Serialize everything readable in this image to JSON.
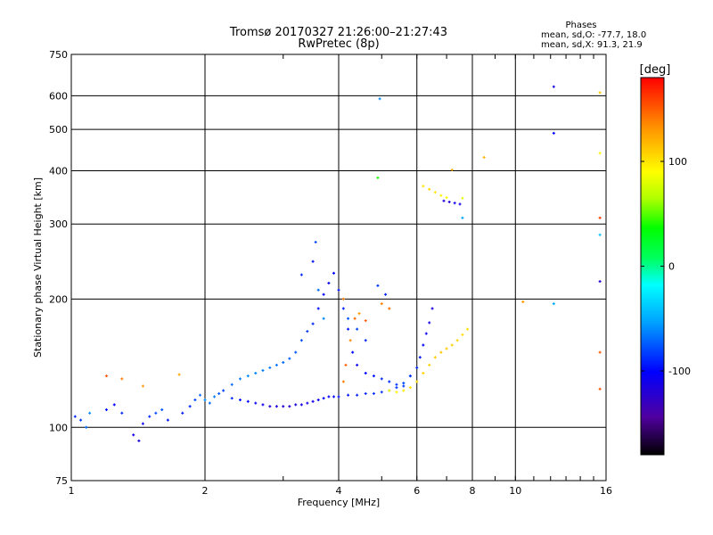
{
  "chart_data": {
    "type": "scatter",
    "title": "Tromsø 20170327 21:26:00–21:27:43",
    "subtitle": "RwPretec (8p)",
    "xlabel": "Frequency [MHz]",
    "ylabel": "Stationary phase Virtual Height [km]",
    "x_scale": "log",
    "y_scale": "log",
    "xlim": [
      1,
      16
    ],
    "ylim": [
      75,
      750
    ],
    "x_ticks": [
      1,
      2,
      4,
      6,
      8,
      10,
      16
    ],
    "x_major_grid": [
      2,
      4,
      6,
      8,
      10
    ],
    "y_ticks": [
      75,
      100,
      200,
      300,
      400,
      500,
      600,
      750
    ],
    "grid": true,
    "phase_stats": {
      "title": "Phases",
      "line_o": "mean, sd,O: -77.7, 18.0",
      "line_x": "mean, sd,X:  91.3, 21.9"
    },
    "colorbar": {
      "label": "[deg]",
      "range": [
        -180,
        180
      ],
      "ticks": [
        100,
        0,
        -100
      ],
      "colormap": [
        "#000000",
        "#5000a0",
        "#0000ff",
        "#00a0ff",
        "#00ffff",
        "#00ff60",
        "#00ff00",
        "#b0ff00",
        "#ffff00",
        "#ff9000",
        "#ff0000"
      ]
    },
    "series": [
      {
        "values": [
          [
            1.02,
            106,
            -90
          ],
          [
            1.05,
            104,
            -85
          ],
          [
            1.08,
            100,
            -70
          ],
          [
            1.1,
            108,
            -60
          ],
          [
            1.2,
            110,
            -95
          ],
          [
            1.25,
            113,
            -100
          ],
          [
            1.3,
            108,
            -90
          ],
          [
            1.38,
            96,
            -110
          ],
          [
            1.42,
            93,
            -115
          ],
          [
            1.45,
            102,
            -105
          ],
          [
            1.5,
            106,
            -90
          ],
          [
            1.55,
            108,
            -80
          ],
          [
            1.6,
            110,
            -75
          ],
          [
            1.65,
            104,
            -95
          ],
          [
            1.78,
            108,
            -95
          ],
          [
            1.85,
            112,
            -90
          ],
          [
            1.9,
            116,
            -80
          ],
          [
            1.95,
            119,
            -70
          ],
          [
            2.0,
            116,
            -60
          ],
          [
            2.05,
            114,
            -70
          ],
          [
            2.1,
            118,
            -65
          ],
          [
            2.15,
            120,
            -75
          ],
          [
            2.2,
            122,
            -80
          ],
          [
            2.3,
            117,
            -90
          ],
          [
            2.4,
            116,
            -95
          ],
          [
            2.5,
            115,
            -100
          ],
          [
            2.6,
            114,
            -105
          ],
          [
            2.7,
            113,
            -110
          ],
          [
            2.8,
            112,
            -115
          ],
          [
            2.9,
            112,
            -118
          ],
          [
            3.0,
            112,
            -120
          ],
          [
            3.1,
            112,
            -118
          ],
          [
            3.2,
            113,
            -115
          ],
          [
            3.3,
            113,
            -112
          ],
          [
            3.4,
            114,
            -110
          ],
          [
            3.5,
            115,
            -108
          ],
          [
            3.6,
            116,
            -105
          ],
          [
            3.7,
            117,
            -102
          ],
          [
            3.8,
            118,
            -100
          ],
          [
            3.9,
            118,
            -98
          ],
          [
            4.0,
            118,
            -96
          ],
          [
            4.2,
            119,
            -94
          ],
          [
            4.4,
            119,
            -92
          ],
          [
            4.6,
            120,
            -90
          ],
          [
            4.8,
            120,
            -88
          ],
          [
            5.0,
            121,
            -86
          ],
          [
            5.2,
            122,
            -84
          ],
          [
            5.4,
            124,
            -82
          ],
          [
            5.6,
            127,
            -80
          ],
          [
            5.8,
            132,
            -85
          ],
          [
            6.0,
            138,
            -90
          ],
          [
            6.1,
            146,
            -95
          ],
          [
            6.2,
            156,
            -100
          ],
          [
            6.3,
            166,
            -105
          ],
          [
            6.4,
            176,
            -110
          ],
          [
            6.5,
            190,
            -115
          ],
          [
            6.9,
            340,
            -120
          ],
          [
            7.1,
            338,
            -115
          ],
          [
            7.3,
            336,
            -110
          ],
          [
            7.5,
            334,
            -110
          ],
          [
            12.2,
            630,
            -110
          ],
          [
            12.2,
            490,
            -100
          ],
          [
            15.5,
            220,
            -120
          ]
        ]
      },
      {
        "values": [
          [
            2.3,
            126,
            -70
          ],
          [
            2.4,
            130,
            -65
          ],
          [
            2.5,
            132,
            -60
          ],
          [
            2.6,
            134,
            -62
          ],
          [
            2.7,
            136,
            -64
          ],
          [
            2.8,
            138,
            -66
          ],
          [
            2.9,
            140,
            -68
          ],
          [
            3.0,
            142,
            -70
          ],
          [
            3.1,
            145,
            -72
          ],
          [
            3.2,
            150,
            -75
          ],
          [
            3.3,
            160,
            -80
          ],
          [
            3.4,
            168,
            -85
          ],
          [
            3.5,
            175,
            -90
          ],
          [
            3.6,
            190,
            -95
          ],
          [
            3.7,
            205,
            -100
          ],
          [
            3.8,
            218,
            -105
          ],
          [
            3.9,
            230,
            -100
          ],
          [
            4.0,
            210,
            -95
          ],
          [
            4.1,
            190,
            -90
          ],
          [
            4.2,
            170,
            -95
          ],
          [
            4.3,
            150,
            -100
          ],
          [
            4.4,
            140,
            -105
          ],
          [
            4.6,
            134,
            -100
          ],
          [
            4.8,
            132,
            -95
          ],
          [
            5.0,
            130,
            -90
          ],
          [
            5.2,
            128,
            -88
          ],
          [
            5.4,
            126,
            -86
          ],
          [
            5.6,
            125,
            -84
          ],
          [
            5.8,
            132,
            -86
          ],
          [
            3.3,
            228,
            -90
          ],
          [
            3.5,
            245,
            -95
          ],
          [
            3.55,
            272,
            -80
          ],
          [
            3.6,
            210,
            -70
          ],
          [
            3.7,
            180,
            -60
          ],
          [
            4.2,
            180,
            -75
          ],
          [
            4.4,
            170,
            -80
          ],
          [
            4.6,
            160,
            -90
          ],
          [
            4.9,
            215,
            -85
          ],
          [
            5.1,
            205,
            -90
          ],
          [
            4.95,
            590,
            -60
          ],
          [
            4.9,
            385,
            40
          ],
          [
            7.6,
            310,
            -50
          ],
          [
            12.2,
            195,
            -50
          ],
          [
            15.5,
            283,
            -40
          ]
        ]
      },
      {
        "values": [
          [
            5.2,
            122,
            90
          ],
          [
            5.4,
            121,
            95
          ],
          [
            5.6,
            122,
            100
          ],
          [
            5.8,
            124,
            102
          ],
          [
            6.0,
            128,
            104
          ],
          [
            6.2,
            134,
            106
          ],
          [
            6.4,
            140,
            108
          ],
          [
            6.6,
            146,
            110
          ],
          [
            6.8,
            150,
            112
          ],
          [
            7.0,
            153,
            110
          ],
          [
            7.2,
            156,
            108
          ],
          [
            7.4,
            160,
            106
          ],
          [
            7.6,
            165,
            104
          ],
          [
            7.8,
            170,
            102
          ],
          [
            6.2,
            368,
            100
          ],
          [
            6.4,
            362,
            105
          ],
          [
            6.6,
            356,
            100
          ],
          [
            6.8,
            350,
            95
          ],
          [
            7.0,
            346,
            90
          ],
          [
            7.6,
            345,
            80
          ],
          [
            15.5,
            440,
            95
          ],
          [
            15.5,
            610,
            110
          ]
        ]
      },
      {
        "values": [
          [
            1.2,
            132,
            150
          ],
          [
            1.3,
            130,
            140
          ],
          [
            1.45,
            125,
            130
          ],
          [
            1.75,
            133,
            125
          ],
          [
            4.1,
            128,
            140
          ],
          [
            4.15,
            140,
            150
          ],
          [
            4.25,
            160,
            135
          ],
          [
            4.35,
            180,
            145
          ],
          [
            4.45,
            185,
            130
          ],
          [
            4.6,
            178,
            150
          ],
          [
            4.1,
            200,
            140
          ],
          [
            5.0,
            195,
            140
          ],
          [
            5.2,
            190,
            145
          ],
          [
            8.5,
            430,
            120
          ],
          [
            10.4,
            197,
            130
          ],
          [
            15.5,
            150,
            150
          ],
          [
            15.5,
            123,
            155
          ],
          [
            15.5,
            310,
            160
          ],
          [
            7.2,
            402,
            120
          ]
        ]
      }
    ]
  }
}
